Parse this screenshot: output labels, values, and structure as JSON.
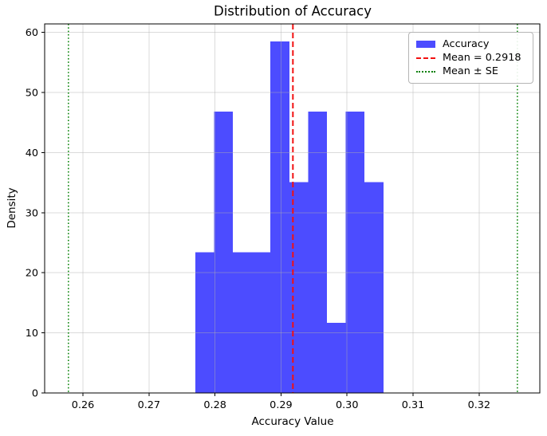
{
  "chart_data": {
    "type": "bar",
    "subtype": "histogram",
    "title": "Distribution of Accuracy",
    "xlabel": "Accuracy Value",
    "ylabel": "Density",
    "xlim": [
      0.2542,
      0.3292
    ],
    "ylim": [
      0,
      61.4
    ],
    "grid": true,
    "legend_position": "upper-right",
    "x_ticks": [
      {
        "value": 0.26,
        "label": "0.26"
      },
      {
        "value": 0.27,
        "label": "0.27"
      },
      {
        "value": 0.28,
        "label": "0.28"
      },
      {
        "value": 0.29,
        "label": "0.29"
      },
      {
        "value": 0.3,
        "label": "0.30"
      },
      {
        "value": 0.31,
        "label": "0.31"
      },
      {
        "value": 0.32,
        "label": "0.32"
      }
    ],
    "y_ticks": [
      {
        "value": 0,
        "label": "0"
      },
      {
        "value": 10,
        "label": "10"
      },
      {
        "value": 20,
        "label": "20"
      },
      {
        "value": 30,
        "label": "30"
      },
      {
        "value": 40,
        "label": "40"
      },
      {
        "value": 50,
        "label": "50"
      },
      {
        "value": 60,
        "label": "60"
      }
    ],
    "histogram": {
      "series_name": "Accuracy",
      "bin_edges": [
        0.277,
        0.27985,
        0.2827,
        0.28555,
        0.2884,
        0.29125,
        0.2941,
        0.29695,
        0.2998,
        0.30265,
        0.3055
      ],
      "densities": [
        23.4,
        46.8,
        23.4,
        23.4,
        58.5,
        35.1,
        46.8,
        11.7,
        46.8,
        35.1
      ],
      "color": "#4C4CFF"
    },
    "mean_line": {
      "value": 0.2918,
      "color": "#F21010",
      "style": "dashed"
    },
    "se_lines": {
      "values": [
        0.2578,
        0.3258
      ],
      "color": "#007F00",
      "style": "dotted"
    },
    "legend": [
      {
        "label": "Accuracy",
        "swatch": "patch",
        "color": "#4C4CFF"
      },
      {
        "label": "Mean = 0.2918",
        "swatch": "dashed-line",
        "color": "#F21010"
      },
      {
        "label": "Mean ± SE",
        "swatch": "dotted-line",
        "color": "#007F00"
      }
    ],
    "colors": {
      "background": "#FFFFFF",
      "grid": "#B0B0B0",
      "spine": "#000000",
      "text": "#000000"
    }
  }
}
